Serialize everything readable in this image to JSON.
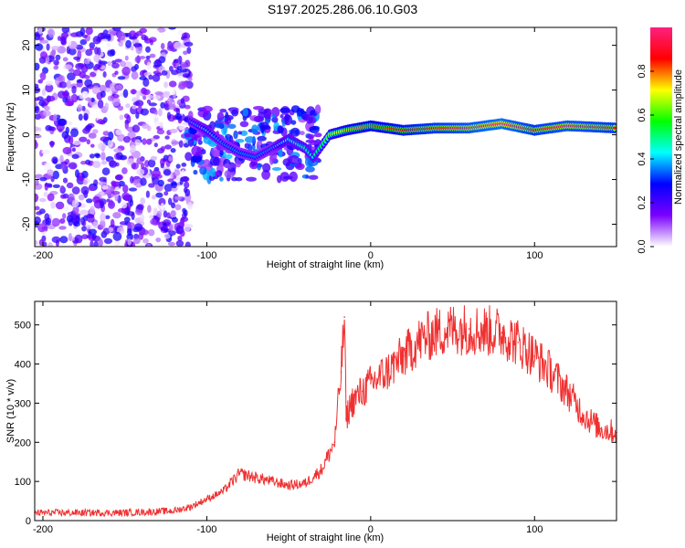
{
  "title": "S197.2025.286.06.10.G03",
  "chart_data": [
    {
      "type": "heatmap",
      "name": "spectrogram",
      "xlabel": "Height of straight line (km)",
      "ylabel": "Frequency (Hz)",
      "xlim": [
        -205,
        150
      ],
      "ylim": [
        -25,
        24
      ],
      "xticks": [
        -200,
        -100,
        0,
        100
      ],
      "yticks": [
        -20,
        -10,
        0,
        10,
        20
      ],
      "colorbar": {
        "label": "Normalized spectral amplitude",
        "range": [
          0,
          1
        ],
        "ticks": [
          0.0,
          0.2,
          0.4,
          0.6,
          0.8
        ],
        "tick_labels": [
          "0.0",
          "0.2",
          "0.4",
          "0.6",
          "0.8"
        ],
        "colors": [
          "#ffffff",
          "#7a00ff",
          "#0000ff",
          "#00ffff",
          "#00ff00",
          "#ffff00",
          "#ff0000",
          "#ff2080"
        ]
      },
      "ridge": [
        {
          "height": -110,
          "freq": 3,
          "amp": 0.35
        },
        {
          "height": -100,
          "freq": 1,
          "amp": 0.4
        },
        {
          "height": -90,
          "freq": -2,
          "amp": 0.35
        },
        {
          "height": -80,
          "freq": -4,
          "amp": 0.35
        },
        {
          "height": -70,
          "freq": -5,
          "amp": 0.35
        },
        {
          "height": -60,
          "freq": -3,
          "amp": 0.35
        },
        {
          "height": -50,
          "freq": -1,
          "amp": 0.45
        },
        {
          "height": -40,
          "freq": -3,
          "amp": 0.5
        },
        {
          "height": -35,
          "freq": -5,
          "amp": 0.45
        },
        {
          "height": -25,
          "freq": 0,
          "amp": 0.65
        },
        {
          "height": -15,
          "freq": 1,
          "amp": 0.75
        },
        {
          "height": 0,
          "freq": 2,
          "amp": 0.8
        },
        {
          "height": 20,
          "freq": 1,
          "amp": 0.85
        },
        {
          "height": 40,
          "freq": 1.5,
          "amp": 0.9
        },
        {
          "height": 60,
          "freq": 1.5,
          "amp": 0.95
        },
        {
          "height": 80,
          "freq": 2.5,
          "amp": 1.0
        },
        {
          "height": 100,
          "freq": 1,
          "amp": 0.9
        },
        {
          "height": 120,
          "freq": 2,
          "amp": 0.95
        },
        {
          "height": 150,
          "freq": 1.5,
          "amp": 0.9
        }
      ]
    },
    {
      "type": "line",
      "name": "snr",
      "xlabel": "Height of straight line (km)",
      "ylabel": "SNR (10 * v/v)",
      "xlim": [
        -205,
        150
      ],
      "ylim": [
        0,
        560
      ],
      "xticks": [
        -200,
        -100,
        0,
        100
      ],
      "yticks": [
        0,
        100,
        200,
        300,
        400,
        500
      ],
      "color": "#f03030",
      "series": [
        {
          "name": "SNR",
          "x": [
            -205,
            -180,
            -150,
            -120,
            -110,
            -100,
            -90,
            -80,
            -70,
            -60,
            -50,
            -40,
            -30,
            -22,
            -18,
            -16,
            -15,
            -12,
            -5,
            0,
            10,
            20,
            30,
            40,
            50,
            60,
            70,
            80,
            90,
            100,
            110,
            120,
            130,
            140,
            150
          ],
          "y": [
            20,
            20,
            20,
            25,
            35,
            55,
            75,
            120,
            110,
            100,
            90,
            95,
            130,
            200,
            380,
            520,
            260,
            300,
            330,
            350,
            380,
            420,
            460,
            480,
            490,
            490,
            485,
            480,
            455,
            420,
            380,
            330,
            270,
            235,
            225
          ]
        }
      ]
    }
  ]
}
